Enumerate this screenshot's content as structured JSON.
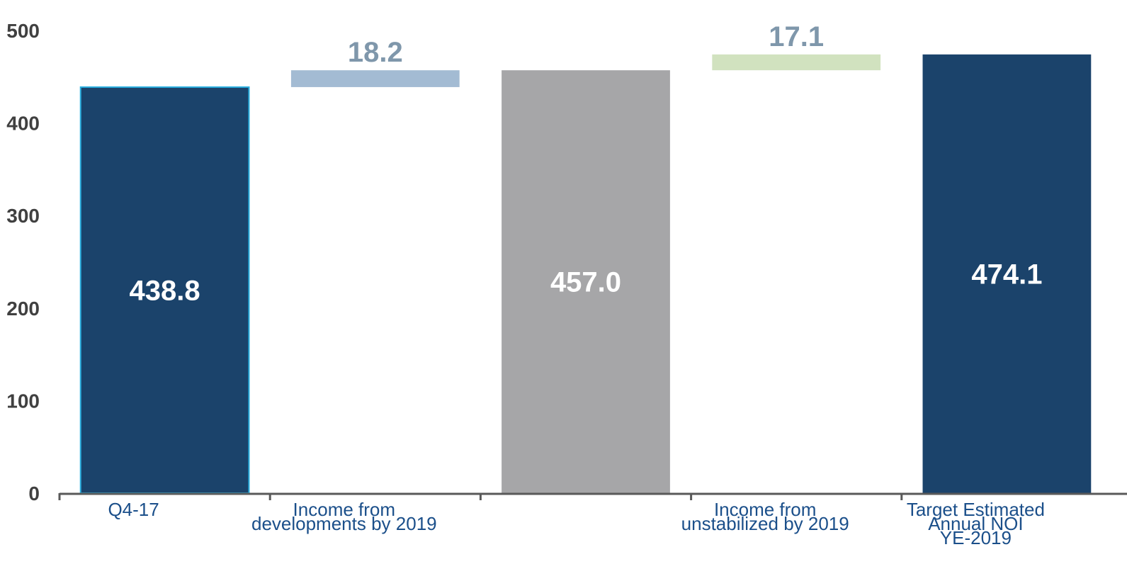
{
  "chart_data": {
    "type": "bar",
    "subtype": "waterfall",
    "categories": [
      [
        "Q4-17"
      ],
      [
        "Income from",
        "developments by 2019"
      ],
      [
        ""
      ],
      [
        "Income from",
        "unstabilized by 2019"
      ],
      [
        "Target Estimated",
        "Annual NOI",
        "YE-2019"
      ]
    ],
    "bars": [
      {
        "kind": "total",
        "base": 0,
        "value": 438.8,
        "label": "438.8",
        "color": "#1b436b",
        "stroke": "#2ab0e0"
      },
      {
        "kind": "increment",
        "base": 438.8,
        "value": 18.2,
        "label": "18.2",
        "color": "#a3bbd3"
      },
      {
        "kind": "total",
        "base": 0,
        "value": 457.0,
        "label": "457.0",
        "color": "#a6a6a8"
      },
      {
        "kind": "increment",
        "base": 457.0,
        "value": 17.1,
        "label": "17.1",
        "color": "#d1e2bf"
      },
      {
        "kind": "total",
        "base": 0,
        "value": 474.1,
        "label": "474.1",
        "color": "#1b436b"
      }
    ],
    "yticks": [
      "0",
      "100",
      "200",
      "300",
      "400",
      "500"
    ],
    "ylim": [
      0,
      500
    ],
    "grid": false,
    "legend": "none",
    "axis_color": "#595959",
    "increment_label_color": "#7f97ab",
    "category_label_color": "#1b4f8a"
  }
}
